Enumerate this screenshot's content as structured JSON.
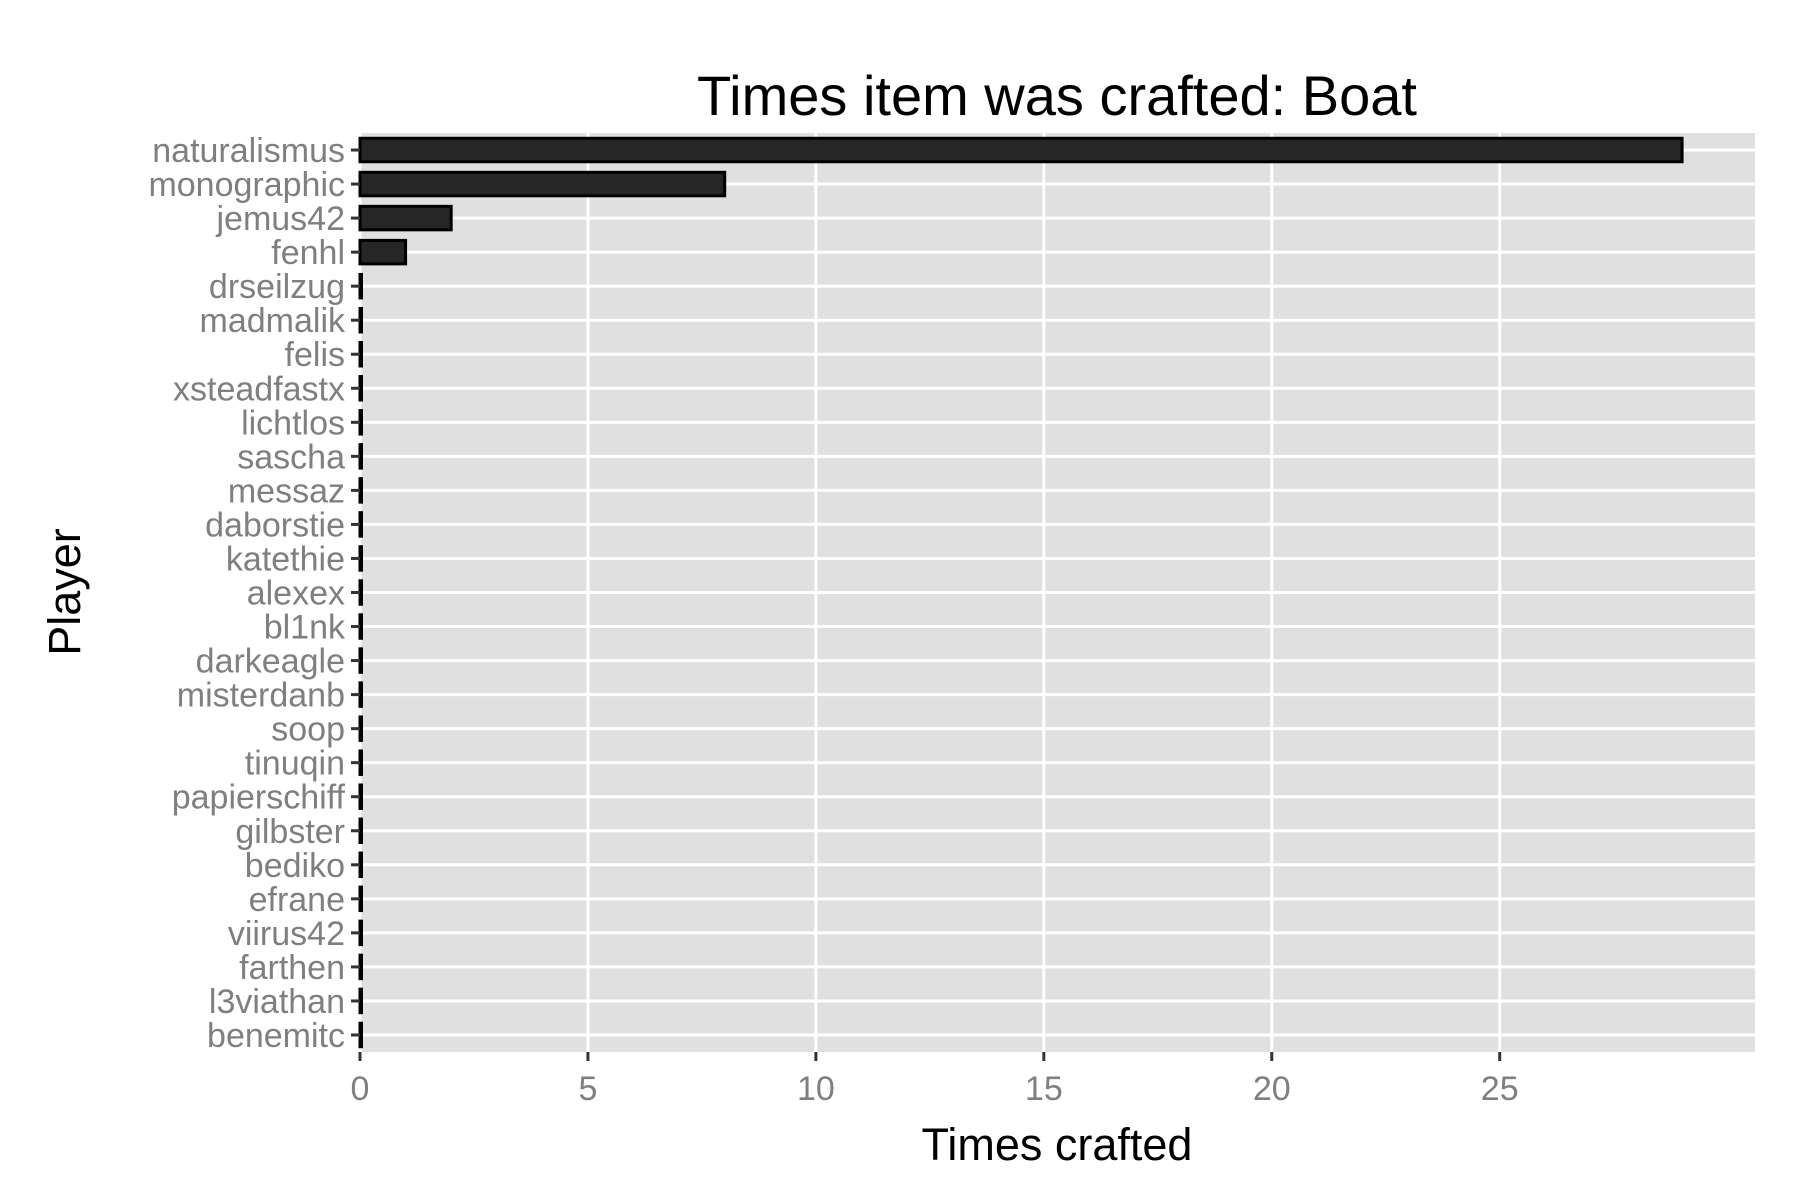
{
  "chart_data": {
    "type": "bar",
    "orientation": "horizontal",
    "title": "Times item was crafted: Boat",
    "xlabel": "Times crafted",
    "ylabel": "Player",
    "xlim": [
      0,
      30.6
    ],
    "xticks": [
      0,
      5,
      10,
      15,
      20,
      25
    ],
    "grid": true,
    "legend": "none",
    "colors": {
      "panel": "#e0e0e0",
      "grid": "#ffffff",
      "bar_fill": "#262626",
      "bar_stroke": "#000000",
      "tick_label": "#7f7f7f",
      "tick_mark": "#333333"
    },
    "categories": [
      "naturalismus",
      "monographic",
      "jemus42",
      "fenhl",
      "drseilzug",
      "madmalik",
      "felis",
      "xsteadfastx",
      "lichtlos",
      "sascha",
      "messaz",
      "daborstie",
      "katethie",
      "alexex",
      "bl1nk",
      "darkeagle",
      "misterdanb",
      "soop",
      "tinuqin",
      "papierschiff",
      "gilbster",
      "bediko",
      "efrane",
      "viirus42",
      "farthen",
      "l3viathan",
      "benemitc"
    ],
    "values": [
      29,
      8,
      2,
      1,
      0,
      0,
      0,
      0,
      0,
      0,
      0,
      0,
      0,
      0,
      0,
      0,
      0,
      0,
      0,
      0,
      0,
      0,
      0,
      0,
      0,
      0,
      0
    ]
  }
}
